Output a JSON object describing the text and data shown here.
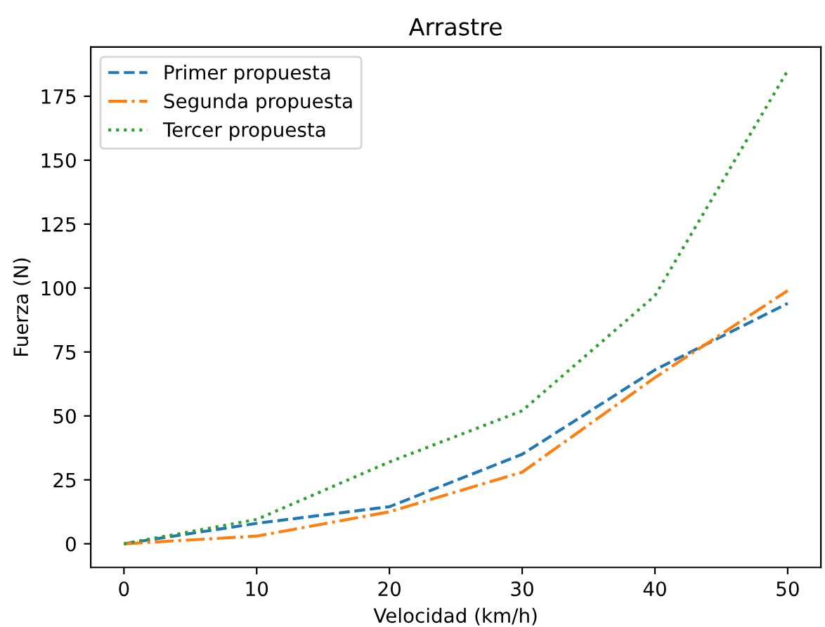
{
  "chart_data": {
    "type": "line",
    "title": "Arrastre",
    "xlabel": "Velocidad (km/h)",
    "ylabel": "Fuerza (N)",
    "x": [
      0,
      10,
      20,
      30,
      40,
      50
    ],
    "series": [
      {
        "name": "Primer propuesta",
        "color": "#1f77b4",
        "line_style": "dashed",
        "values": [
          0,
          8,
          14.5,
          35,
          68,
          94
        ]
      },
      {
        "name": "Segunda propuesta",
        "color": "#ff7f0e",
        "line_style": "dashdot",
        "values": [
          0,
          3,
          12.5,
          28,
          65,
          99
        ]
      },
      {
        "name": "Tercer propuesta",
        "color": "#2ca02c",
        "line_style": "dotted",
        "values": [
          0,
          9.5,
          32,
          52,
          97,
          185
        ]
      }
    ],
    "xlim": [
      -2.5,
      52.5
    ],
    "xticks": [
      0,
      10,
      20,
      30,
      40,
      50
    ],
    "ylim": [
      -9.25,
      194.25
    ],
    "yticks": [
      0,
      25,
      50,
      75,
      100,
      125,
      150,
      175
    ],
    "legend": "top left",
    "grid": false
  }
}
